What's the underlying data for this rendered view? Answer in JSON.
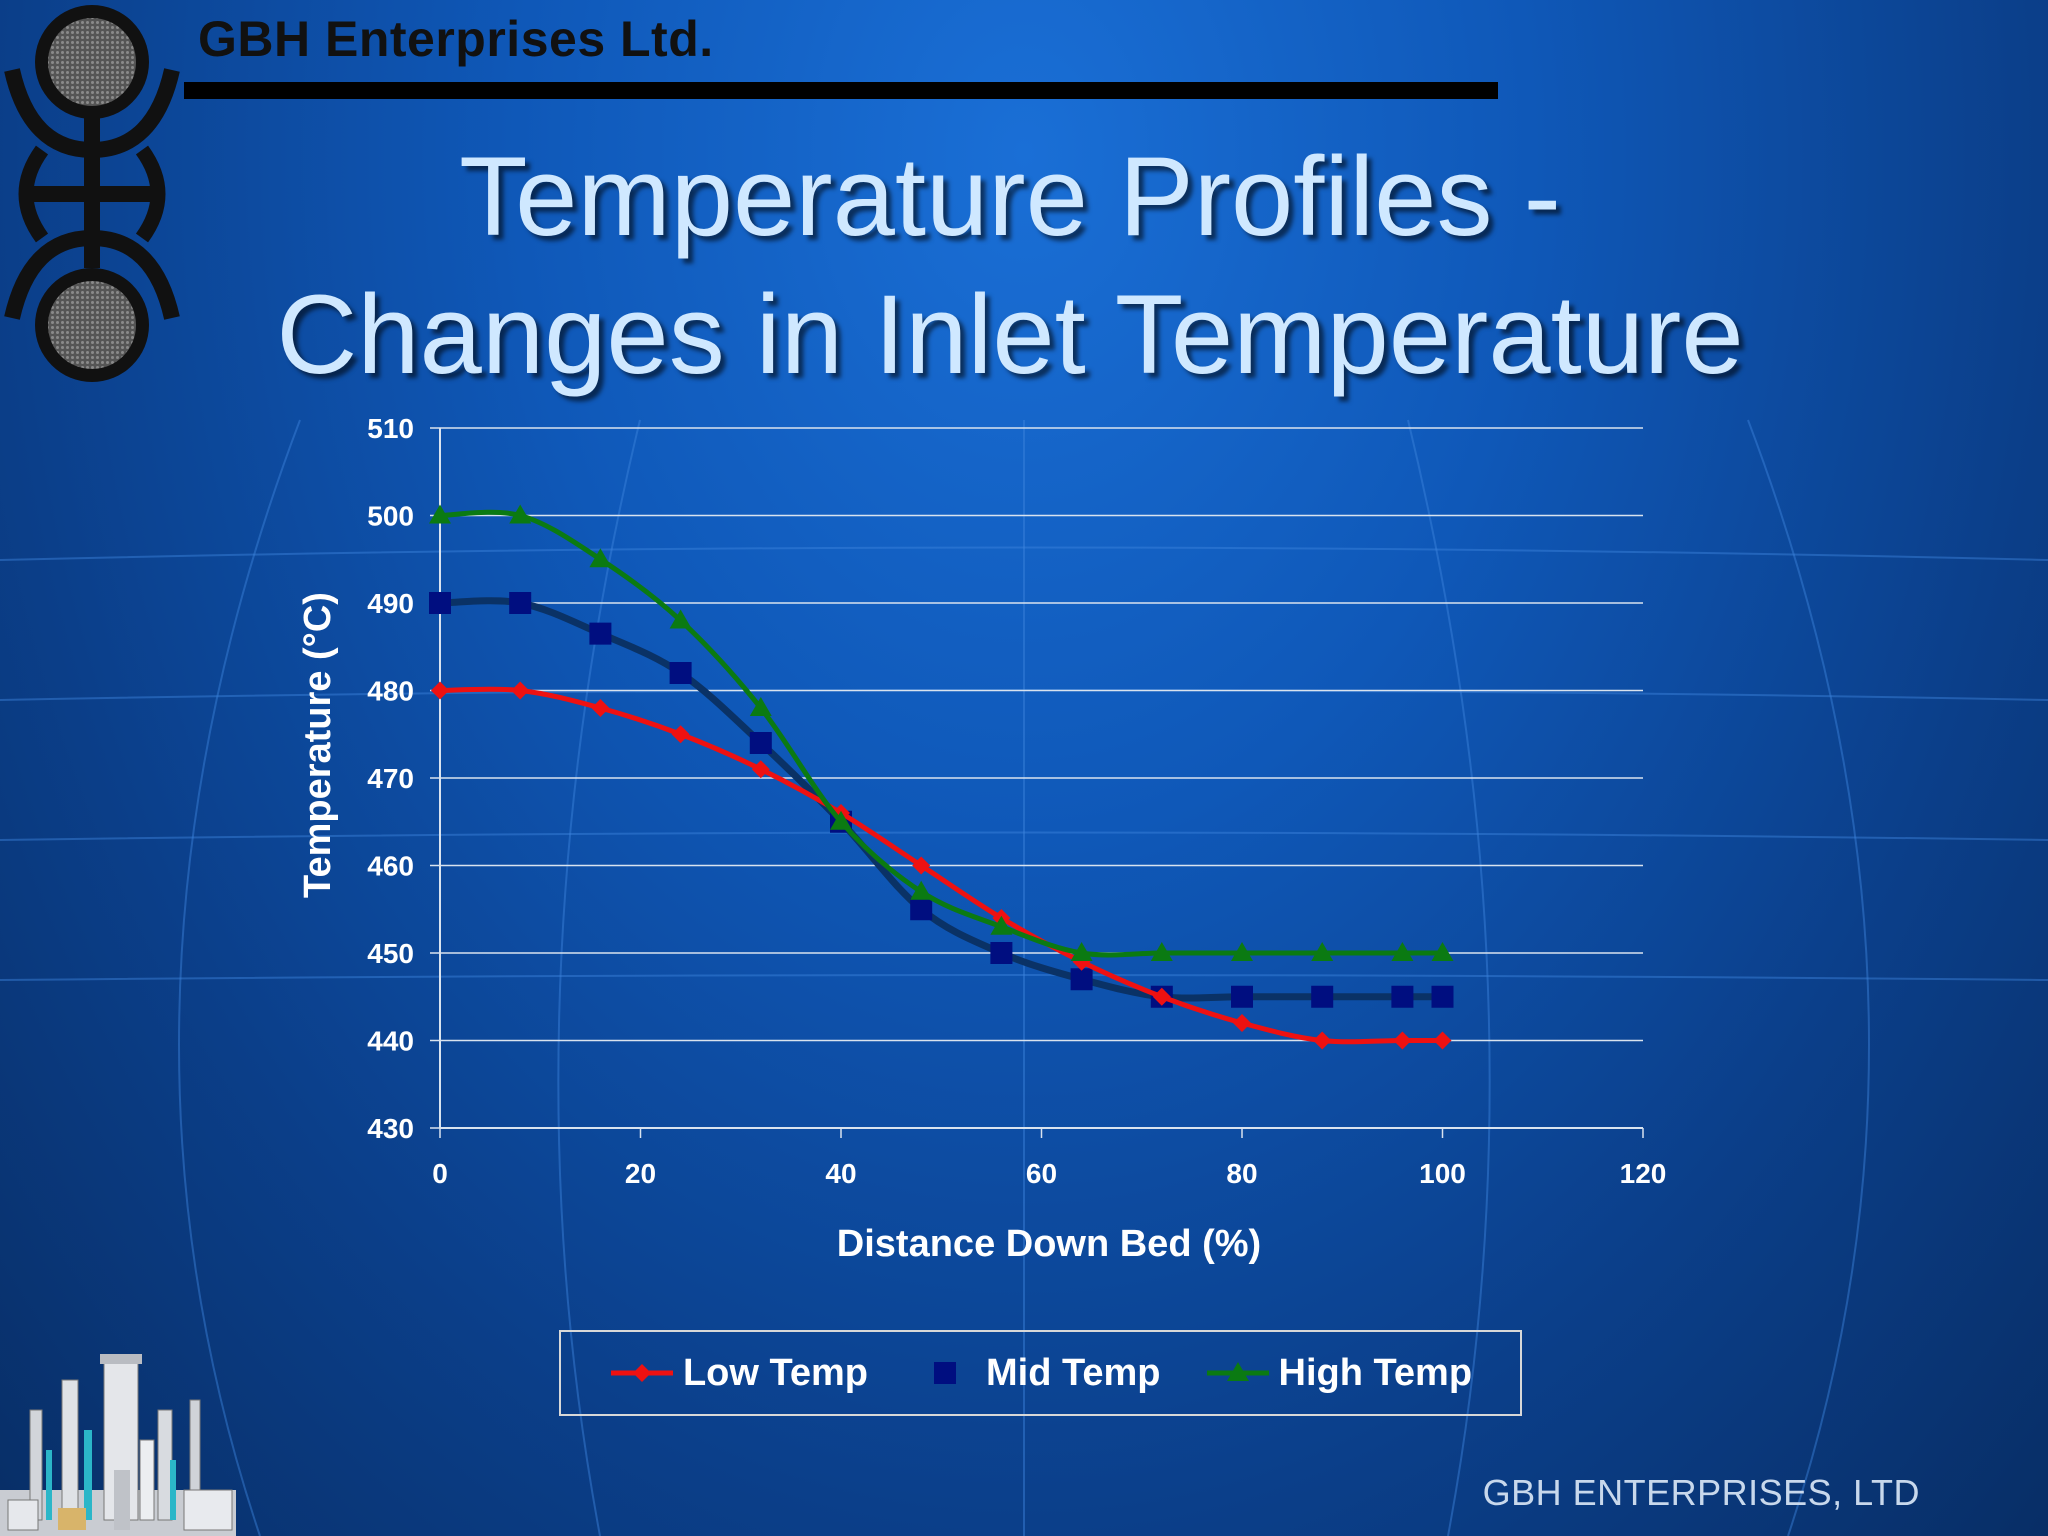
{
  "header": {
    "company": "GBH Enterprises Ltd."
  },
  "title": {
    "line1": "Temperature Profiles -",
    "line2": "Changes in Inlet Temperature"
  },
  "footer": {
    "company": "GBH ENTERPRISES, LTD"
  },
  "colors": {
    "low": "#ee1111",
    "mid": "#000e80",
    "mid_line": "#0a3266",
    "high": "#0b7a12"
  },
  "chart_data": {
    "type": "line",
    "xlabel": "Distance Down Bed (%)",
    "ylabel": "Temperature (°C)",
    "xlim": [
      0,
      120
    ],
    "ylim": [
      430,
      510
    ],
    "xticks": [
      0,
      20,
      40,
      60,
      80,
      100,
      120
    ],
    "yticks": [
      430,
      440,
      450,
      460,
      470,
      480,
      490,
      500,
      510
    ],
    "grid": "horizontal",
    "legend_position": "bottom",
    "series": [
      {
        "name": "Low Temp",
        "marker": "diamond",
        "x": [
          0,
          8,
          16,
          24,
          32,
          40,
          48,
          56,
          64,
          72,
          80,
          88,
          96,
          100
        ],
        "y": [
          480,
          480,
          478,
          475,
          471,
          466,
          460,
          454,
          449,
          445,
          442,
          440,
          440,
          440
        ]
      },
      {
        "name": "Mid Temp",
        "marker": "square",
        "x": [
          0,
          8,
          16,
          24,
          32,
          40,
          48,
          56,
          64,
          72,
          80,
          88,
          96,
          100
        ],
        "y": [
          490,
          490,
          486.5,
          482,
          474,
          465,
          455,
          450,
          447,
          445,
          445,
          445,
          445,
          445
        ]
      },
      {
        "name": "High Temp",
        "marker": "triangle",
        "x": [
          0,
          8,
          16,
          24,
          32,
          40,
          48,
          56,
          64,
          72,
          80,
          88,
          96,
          100
        ],
        "y": [
          500,
          500,
          495,
          488,
          478,
          465,
          457,
          453,
          450,
          450,
          450,
          450,
          450,
          450
        ]
      }
    ]
  }
}
